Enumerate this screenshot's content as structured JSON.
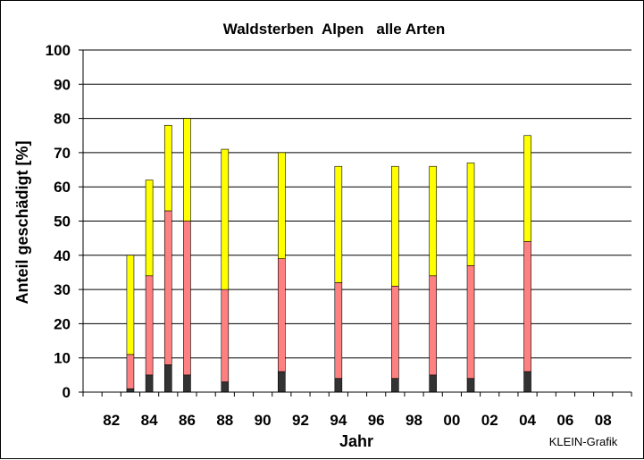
{
  "chart_data": {
    "type": "bar",
    "stacked": true,
    "title": "Waldsterben  Alpen   alle Arten",
    "xlabel": "Jahr",
    "ylabel": "Anteil geschädigt [%]",
    "credit": "KLEIN-Grafik",
    "ylim": [
      0,
      100
    ],
    "yticks": [
      0,
      10,
      20,
      30,
      40,
      50,
      60,
      70,
      80,
      90,
      100
    ],
    "xlim": [
      1981,
      2010
    ],
    "xtick_labels": [
      "82",
      "84",
      "86",
      "88",
      "90",
      "92",
      "94",
      "96",
      "98",
      "00",
      "02",
      "04",
      "06",
      "08"
    ],
    "x": [
      1983,
      1984,
      1985,
      1986,
      1988,
      1991,
      1994,
      1997,
      1999,
      2001,
      2004
    ],
    "series": [
      {
        "color": "#333333",
        "values": [
          1,
          5,
          8,
          5,
          3,
          6,
          4,
          4,
          5,
          4,
          6
        ]
      },
      {
        "color": "#ff8080",
        "values": [
          10,
          29,
          45,
          45,
          27,
          33,
          28,
          27,
          29,
          33,
          38
        ]
      },
      {
        "color": "#ffff00",
        "values": [
          29,
          28,
          25,
          30,
          41,
          31,
          34,
          35,
          32,
          30,
          31
        ]
      }
    ],
    "grid": "horizontal",
    "legend": "none"
  }
}
